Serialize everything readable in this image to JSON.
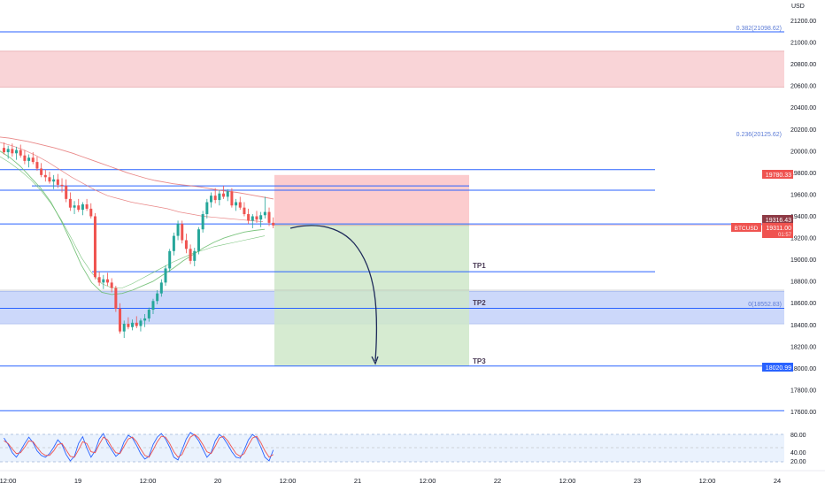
{
  "colors": {
    "up": "#26a69a",
    "down": "#ef5350",
    "level_line": "#2962ff",
    "resistance_zone": "#f7c5c9",
    "support_zone": "#c3d1f9",
    "stop_zone": "#fcc7c9",
    "target_zone": "#cfe8c9",
    "ma_red": "#e57373",
    "ma_green": "#66bb6a",
    "arrow": "#1e2a5a",
    "stoch_k": "#2962ff",
    "stoch_d": "#ef5350"
  },
  "price_axis": {
    "unit_label": "USD",
    "ticks": [
      "21200.00",
      "21000.00",
      "20800.00",
      "20600.00",
      "20400.00",
      "20200.00",
      "20000.00",
      "19800.00",
      "19600.00",
      "19400.00",
      "19200.00",
      "19000.00",
      "18800.00",
      "18600.00",
      "18400.00",
      "18200.00",
      "18000.00",
      "17800.00",
      "17600.00"
    ]
  },
  "time_axis": {
    "ticks": [
      "12:00",
      "19",
      "12:00",
      "20",
      "12:00",
      "21",
      "12:00",
      "22",
      "12:00",
      "23",
      "12:00",
      "24"
    ]
  },
  "tags": {
    "stop_level": "19780.33",
    "last_price": "19316.43",
    "symbol": "BTCUSD",
    "symbol_price": "19311.00",
    "countdown": "01:57",
    "tp3_level": "18020.99"
  },
  "fib_labels": {
    "f0382": "0.382(21098.62)",
    "f0236": "0.236(20125.62)",
    "f0": "0(18552.83)"
  },
  "target_labels": {
    "tp1": "TP1",
    "tp2": "TP2",
    "tp3": "TP3"
  },
  "oscillator": {
    "ticks": [
      "80.00",
      "40.00",
      "20.00"
    ]
  },
  "chart_data": {
    "type": "candlestick",
    "symbol": "BTCUSD",
    "price_range": [
      17500,
      21350
    ],
    "horizontal_levels": [
      21098.62,
      19830,
      19640,
      19330,
      18890,
      18552.83,
      18020.99,
      17610
    ],
    "zones": {
      "resistance": [
        20590,
        20920
      ],
      "support": [
        18410,
        18710
      ],
      "position_stop": [
        19330,
        19780.33
      ],
      "position_target": [
        18020.99,
        19330
      ]
    },
    "fib_levels": [
      {
        "label": "0.382",
        "price": 21098.62
      },
      {
        "label": "0.236",
        "price": 20125.62
      },
      {
        "label": "0",
        "price": 18552.83
      }
    ],
    "take_profits": [
      {
        "label": "TP1",
        "price": 18890
      },
      {
        "label": "TP2",
        "price": 18552.83
      },
      {
        "label": "TP3",
        "price": 18020.99
      }
    ],
    "last_price": 19316.43,
    "candles": [
      [
        20030,
        20080,
        19970,
        19990
      ],
      [
        19990,
        20050,
        19930,
        20020
      ],
      [
        20020,
        20070,
        19950,
        19980
      ],
      [
        19980,
        20040,
        19920,
        20010
      ],
      [
        20010,
        20060,
        19940,
        19960
      ],
      [
        19960,
        20010,
        19880,
        19910
      ],
      [
        19910,
        19970,
        19850,
        19940
      ],
      [
        19940,
        19990,
        19880,
        19900
      ],
      [
        19900,
        19950,
        19820,
        19840
      ],
      [
        19840,
        19890,
        19760,
        19780
      ],
      [
        19780,
        19830,
        19720,
        19760
      ],
      [
        19760,
        19810,
        19700,
        19720
      ],
      [
        19720,
        19780,
        19650,
        19740
      ],
      [
        19740,
        19790,
        19660,
        19690
      ],
      [
        19690,
        19750,
        19620,
        19680
      ],
      [
        19680,
        19740,
        19530,
        19560
      ],
      [
        19560,
        19620,
        19450,
        19480
      ],
      [
        19480,
        19540,
        19420,
        19500
      ],
      [
        19500,
        19560,
        19440,
        19460
      ],
      [
        19460,
        19530,
        19410,
        19510
      ],
      [
        19510,
        19560,
        19450,
        19470
      ],
      [
        19470,
        19520,
        19380,
        19400
      ],
      [
        19400,
        19430,
        18820,
        18840
      ],
      [
        18840,
        18890,
        18760,
        18790
      ],
      [
        18790,
        18860,
        18730,
        18820
      ],
      [
        18820,
        18880,
        18760,
        18790
      ],
      [
        18790,
        18830,
        18700,
        18740
      ],
      [
        18740,
        18760,
        18520,
        18550
      ],
      [
        18550,
        18600,
        18320,
        18340
      ],
      [
        18340,
        18440,
        18280,
        18410
      ],
      [
        18410,
        18470,
        18360,
        18380
      ],
      [
        18380,
        18450,
        18350,
        18420
      ],
      [
        18420,
        18480,
        18370,
        18390
      ],
      [
        18390,
        18460,
        18340,
        18440
      ],
      [
        18440,
        18500,
        18380,
        18460
      ],
      [
        18460,
        18560,
        18430,
        18540
      ],
      [
        18540,
        18640,
        18500,
        18620
      ],
      [
        18620,
        18720,
        18590,
        18690
      ],
      [
        18690,
        18820,
        18660,
        18790
      ],
      [
        18790,
        18950,
        18760,
        18920
      ],
      [
        18920,
        19100,
        18890,
        19080
      ],
      [
        19080,
        19250,
        19040,
        19220
      ],
      [
        19220,
        19360,
        19180,
        19330
      ],
      [
        19330,
        19360,
        19150,
        19180
      ],
      [
        19180,
        19240,
        19060,
        19100
      ],
      [
        19100,
        19140,
        18960,
        18990
      ],
      [
        18990,
        19110,
        18940,
        19080
      ],
      [
        19080,
        19300,
        19050,
        19280
      ],
      [
        19280,
        19450,
        19250,
        19420
      ],
      [
        19420,
        19560,
        19380,
        19530
      ],
      [
        19530,
        19620,
        19480,
        19590
      ],
      [
        19590,
        19660,
        19520,
        19550
      ],
      [
        19550,
        19640,
        19500,
        19610
      ],
      [
        19610,
        19680,
        19560,
        19580
      ],
      [
        19580,
        19650,
        19540,
        19630
      ],
      [
        19630,
        19660,
        19480,
        19500
      ],
      [
        19500,
        19560,
        19450,
        19530
      ],
      [
        19530,
        19580,
        19460,
        19480
      ],
      [
        19480,
        19530,
        19400,
        19420
      ],
      [
        19420,
        19470,
        19330,
        19360
      ],
      [
        19360,
        19420,
        19290,
        19400
      ],
      [
        19400,
        19450,
        19340,
        19370
      ],
      [
        19370,
        19440,
        19300,
        19410
      ],
      [
        19410,
        19580,
        19380,
        19440
      ],
      [
        19440,
        19480,
        19310,
        19340
      ],
      [
        19340,
        19390,
        19290,
        19316
      ]
    ],
    "series": [
      {
        "values": [
          20130,
          20120,
          20105,
          20090,
          20070,
          20050,
          20030,
          20005,
          19980,
          19950,
          19920,
          19890,
          19860,
          19830,
          19800,
          19775,
          19750,
          19730,
          19715,
          19700,
          19690,
          19680,
          19670,
          19655,
          19640,
          19630,
          19620,
          19605,
          19590,
          19575,
          19560
        ]
      },
      {
        "values": [
          20080,
          20050,
          20010,
          19960,
          19900,
          19830,
          19760,
          19700,
          19640,
          19590,
          19560,
          19530,
          19510,
          19490,
          19470,
          19440,
          19420,
          19400,
          19390,
          19380,
          19370,
          19360,
          19350
        ]
      },
      {
        "values": [
          20000,
          19940,
          19860,
          19760,
          19660,
          19530,
          19360,
          19160,
          18950,
          18790,
          18700,
          18680,
          18690,
          18720,
          18760,
          18800,
          18860,
          18920,
          18990,
          19050,
          19110,
          19160,
          19200,
          19230,
          19255,
          19270,
          19280
        ]
      },
      {
        "values": [
          19950,
          19890,
          19820,
          19740,
          19640,
          19520,
          19370,
          19200,
          19020,
          18880,
          18780,
          18740,
          18740,
          18780,
          18830,
          18880,
          18930,
          18980,
          19020,
          19060,
          19090,
          19120,
          19140,
          19160,
          19180,
          19200,
          19220
        ]
      }
    ],
    "stochastic": {
      "k": [
        72,
        58,
        40,
        30,
        44,
        60,
        74,
        62,
        44,
        34,
        30,
        38,
        52,
        68,
        58,
        36,
        22,
        32,
        60,
        75,
        50,
        30,
        44,
        70,
        82,
        60,
        46,
        32,
        40,
        64,
        78,
        72,
        56,
        38,
        26,
        32,
        58,
        74,
        82,
        70,
        52,
        30,
        24,
        46,
        70,
        84,
        78,
        66,
        48,
        30,
        40,
        66,
        80,
        72,
        58,
        42,
        30,
        28,
        46,
        68,
        80,
        72,
        52,
        30,
        22,
        46
      ],
      "d": [
        66,
        60,
        48,
        38,
        40,
        52,
        66,
        64,
        52,
        40,
        34,
        34,
        44,
        58,
        60,
        46,
        32,
        30,
        46,
        64,
        60,
        42,
        40,
        58,
        74,
        68,
        52,
        40,
        38,
        54,
        70,
        74,
        64,
        48,
        34,
        30,
        46,
        64,
        76,
        74,
        60,
        42,
        30,
        36,
        56,
        74,
        80,
        72,
        58,
        42,
        38,
        54,
        72,
        76,
        66,
        52,
        38,
        32,
        38,
        56,
        72,
        76,
        62,
        44,
        30,
        36
      ]
    }
  }
}
